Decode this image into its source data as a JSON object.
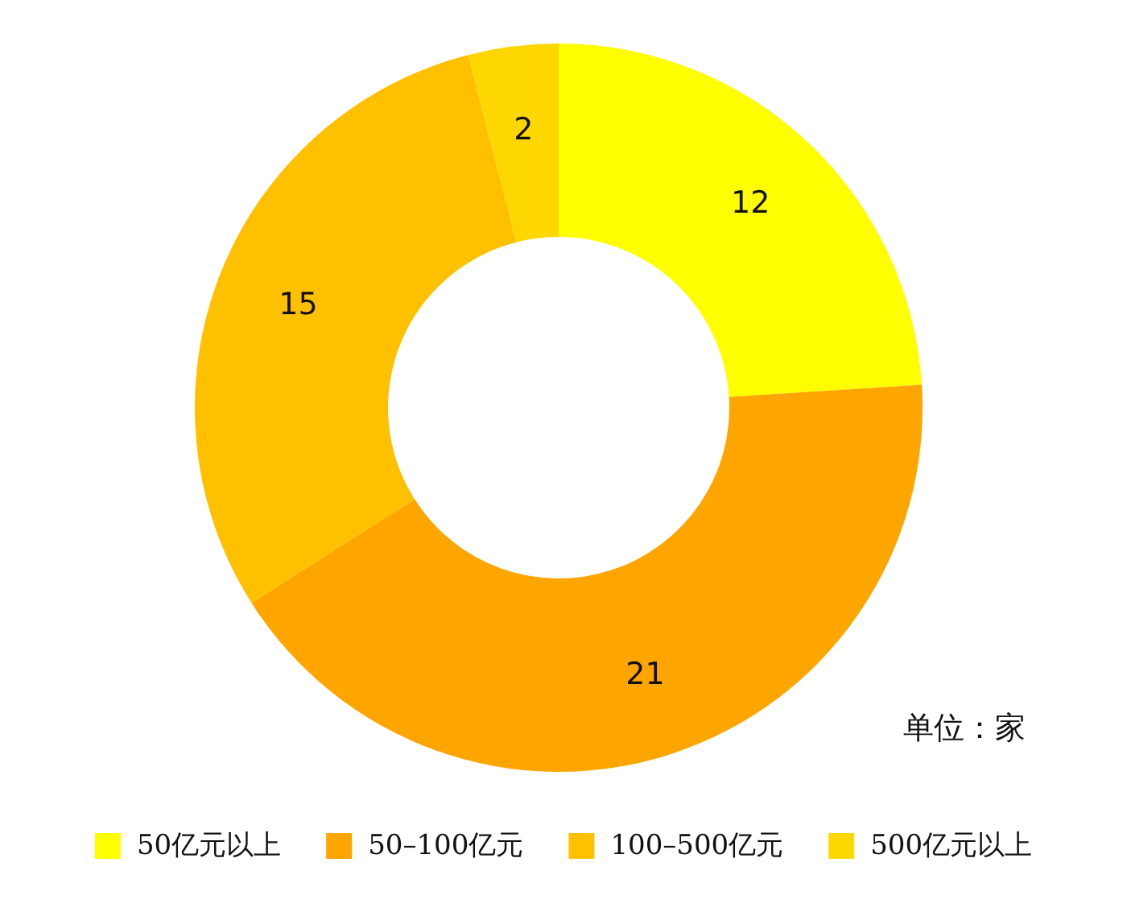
{
  "chart_data": {
    "type": "donut",
    "categories": [
      "50亿元以上",
      "50–100亿元",
      "100–500亿元",
      "500亿元以上"
    ],
    "values": [
      12,
      21,
      15,
      2
    ],
    "colors": [
      "#fefe00",
      "#ffa500",
      "#ffc000",
      "#ffd700"
    ],
    "data_labels": true,
    "legend": "bottom",
    "annotations": [
      "单位：家"
    ]
  }
}
